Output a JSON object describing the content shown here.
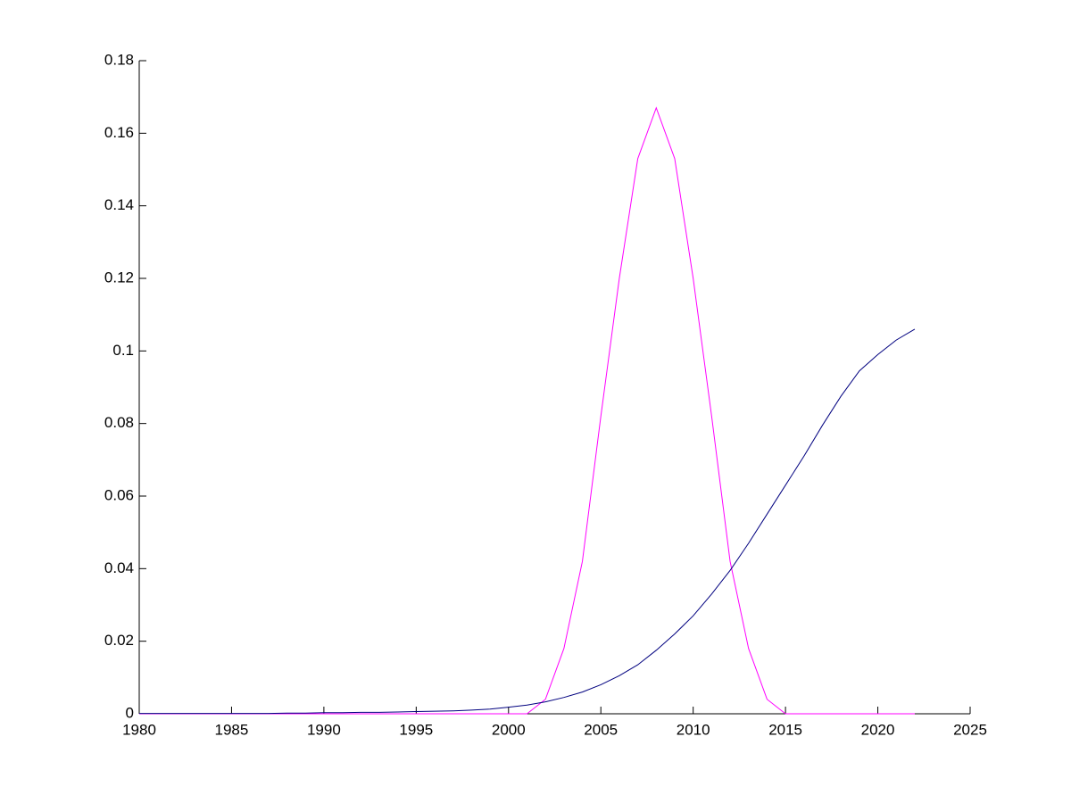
{
  "chart_data": {
    "type": "line",
    "x": [
      1980,
      1981,
      1982,
      1983,
      1984,
      1985,
      1986,
      1987,
      1988,
      1989,
      1990,
      1991,
      1992,
      1993,
      1994,
      1995,
      1996,
      1997,
      1998,
      1999,
      2000,
      2001,
      2002,
      2003,
      2004,
      2005,
      2006,
      2007,
      2008,
      2009,
      2010,
      2011,
      2012,
      2013,
      2014,
      2015,
      2016,
      2017,
      2018,
      2019,
      2020,
      2021,
      2022
    ],
    "series": [
      {
        "color": "#ff00ff",
        "values": [
          0,
          0,
          0,
          0,
          0,
          0,
          0,
          0,
          0,
          0,
          0,
          0,
          0,
          0,
          0,
          0,
          0,
          0,
          0,
          0,
          0,
          0,
          0.004,
          0.018,
          0.042,
          0.082,
          0.12,
          0.153,
          0.167,
          0.153,
          0.12,
          0.082,
          0.042,
          0.018,
          0.004,
          0,
          0,
          0,
          0,
          0,
          0,
          0,
          0
        ]
      },
      {
        "color": "#00007f",
        "values": [
          0.0001,
          0.0001,
          0.0001,
          0.0001,
          0.0001,
          0.0001,
          0.0001,
          0.0001,
          0.0002,
          0.0002,
          0.0003,
          0.0003,
          0.0004,
          0.0004,
          0.0005,
          0.0006,
          0.0007,
          0.0008,
          0.001,
          0.0013,
          0.0018,
          0.0024,
          0.0033,
          0.0045,
          0.006,
          0.008,
          0.0105,
          0.0135,
          0.0175,
          0.022,
          0.027,
          0.033,
          0.0395,
          0.047,
          0.055,
          0.063,
          0.071,
          0.0795,
          0.0875,
          0.0945,
          0.099,
          0.103,
          0.106
        ]
      }
    ],
    "xlim": [
      1980,
      2025
    ],
    "xticks": [
      1980,
      1985,
      1990,
      1995,
      2000,
      2005,
      2010,
      2015,
      2020,
      2025
    ],
    "ylim": [
      0,
      0.18
    ],
    "yticks": [
      0,
      0.02,
      0.04,
      0.06,
      0.08,
      0.1,
      0.12,
      0.14,
      0.16,
      0.18
    ],
    "grid": false
  }
}
